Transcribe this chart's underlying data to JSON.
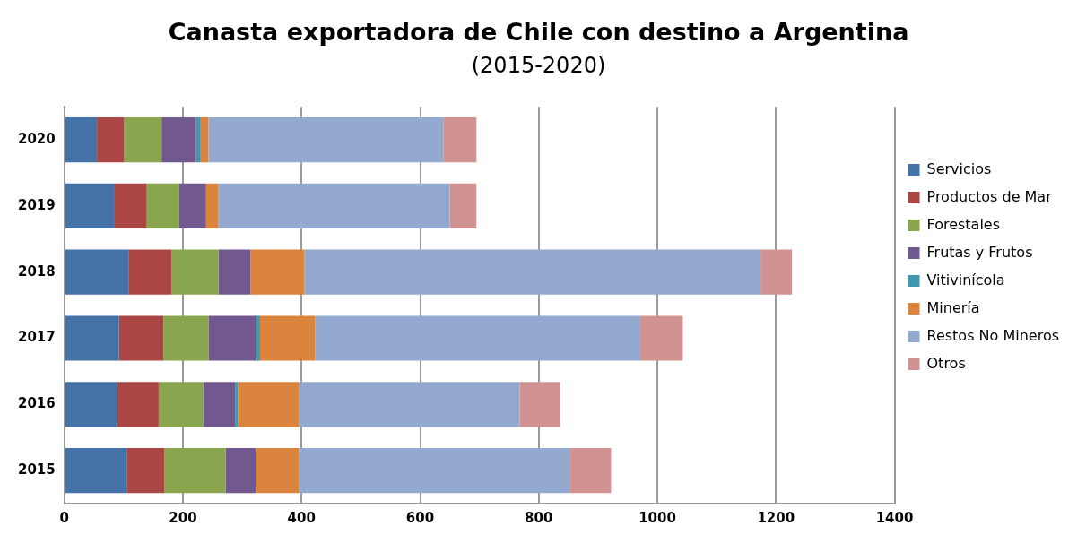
{
  "chart_data": {
    "type": "bar",
    "orientation": "horizontal",
    "stacked": true,
    "title": "Canasta exportadora de Chile con destino a Argentina",
    "subtitle": "(2015-2020)",
    "categories": [
      "2020",
      "2019",
      "2018",
      "2017",
      "2016",
      "2015"
    ],
    "series": [
      {
        "name": "Servicios",
        "color": "#4572a7",
        "values": [
          55,
          85,
          109,
          92,
          89,
          106
        ]
      },
      {
        "name": "Productos de Mar",
        "color": "#aa4643",
        "values": [
          46,
          54,
          72,
          75,
          70,
          63
        ]
      },
      {
        "name": "Forestales",
        "color": "#89a54e",
        "values": [
          63,
          54,
          79,
          76,
          75,
          103
        ]
      },
      {
        "name": "Frutas y Frutos",
        "color": "#71588f",
        "values": [
          58,
          46,
          54,
          80,
          54,
          51
        ]
      },
      {
        "name": "Vitivinícola",
        "color": "#4198af",
        "values": [
          8,
          0,
          0,
          7,
          5,
          0
        ]
      },
      {
        "name": "Minería",
        "color": "#db843d",
        "values": [
          13,
          21,
          91,
          93,
          103,
          73
        ]
      },
      {
        "name": "Restos No Mineros",
        "color": "#93a9cf",
        "values": [
          396,
          390,
          769,
          547,
          372,
          456
        ]
      },
      {
        "name": "Otros",
        "color": "#d19392",
        "values": [
          56,
          45,
          53,
          73,
          68,
          70
        ]
      }
    ],
    "xlim": [
      0,
      1400
    ],
    "xticks": [
      0,
      200,
      400,
      600,
      800,
      1000,
      1200,
      1400
    ],
    "grid": "x",
    "legend": "right"
  }
}
